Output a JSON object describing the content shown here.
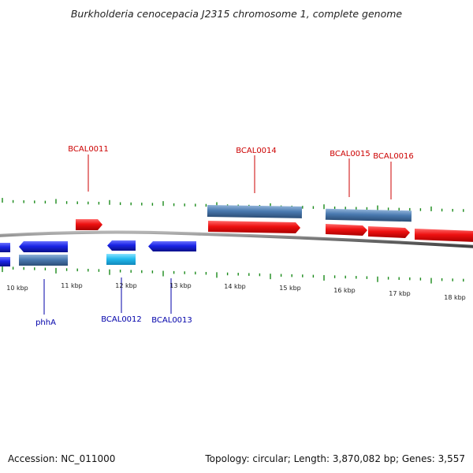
{
  "title": "Burkholderia cenocepacia J2315 chromosome 1, complete genome",
  "footer": {
    "accession": "Accession: NC_011000",
    "summary": "Topology: circular; Length: 3,870,082 bp; Genes: 3,557"
  },
  "colors": {
    "forward": "#ee1111",
    "reverse": "#1a24e6",
    "pseudo": "#4a7ab0",
    "light": "#22bbee",
    "ticks": "#1a8a1a",
    "backbone": "#707070",
    "label_forward": "#cc0000",
    "label_reverse": "#0000aa"
  },
  "scale_labels": [
    "10 kbp",
    "11 kbp",
    "12 kbp",
    "13 kbp",
    "14 kbp",
    "15 kbp",
    "16 kbp",
    "17 kbp",
    "18 kbp"
  ],
  "labels_forward": [
    "BCAL0011",
    "BCAL0014",
    "BCAL0015",
    "BCAL0016"
  ],
  "labels_reverse": [
    "phhA",
    "BCAL0012",
    "BCAL0013"
  ]
}
